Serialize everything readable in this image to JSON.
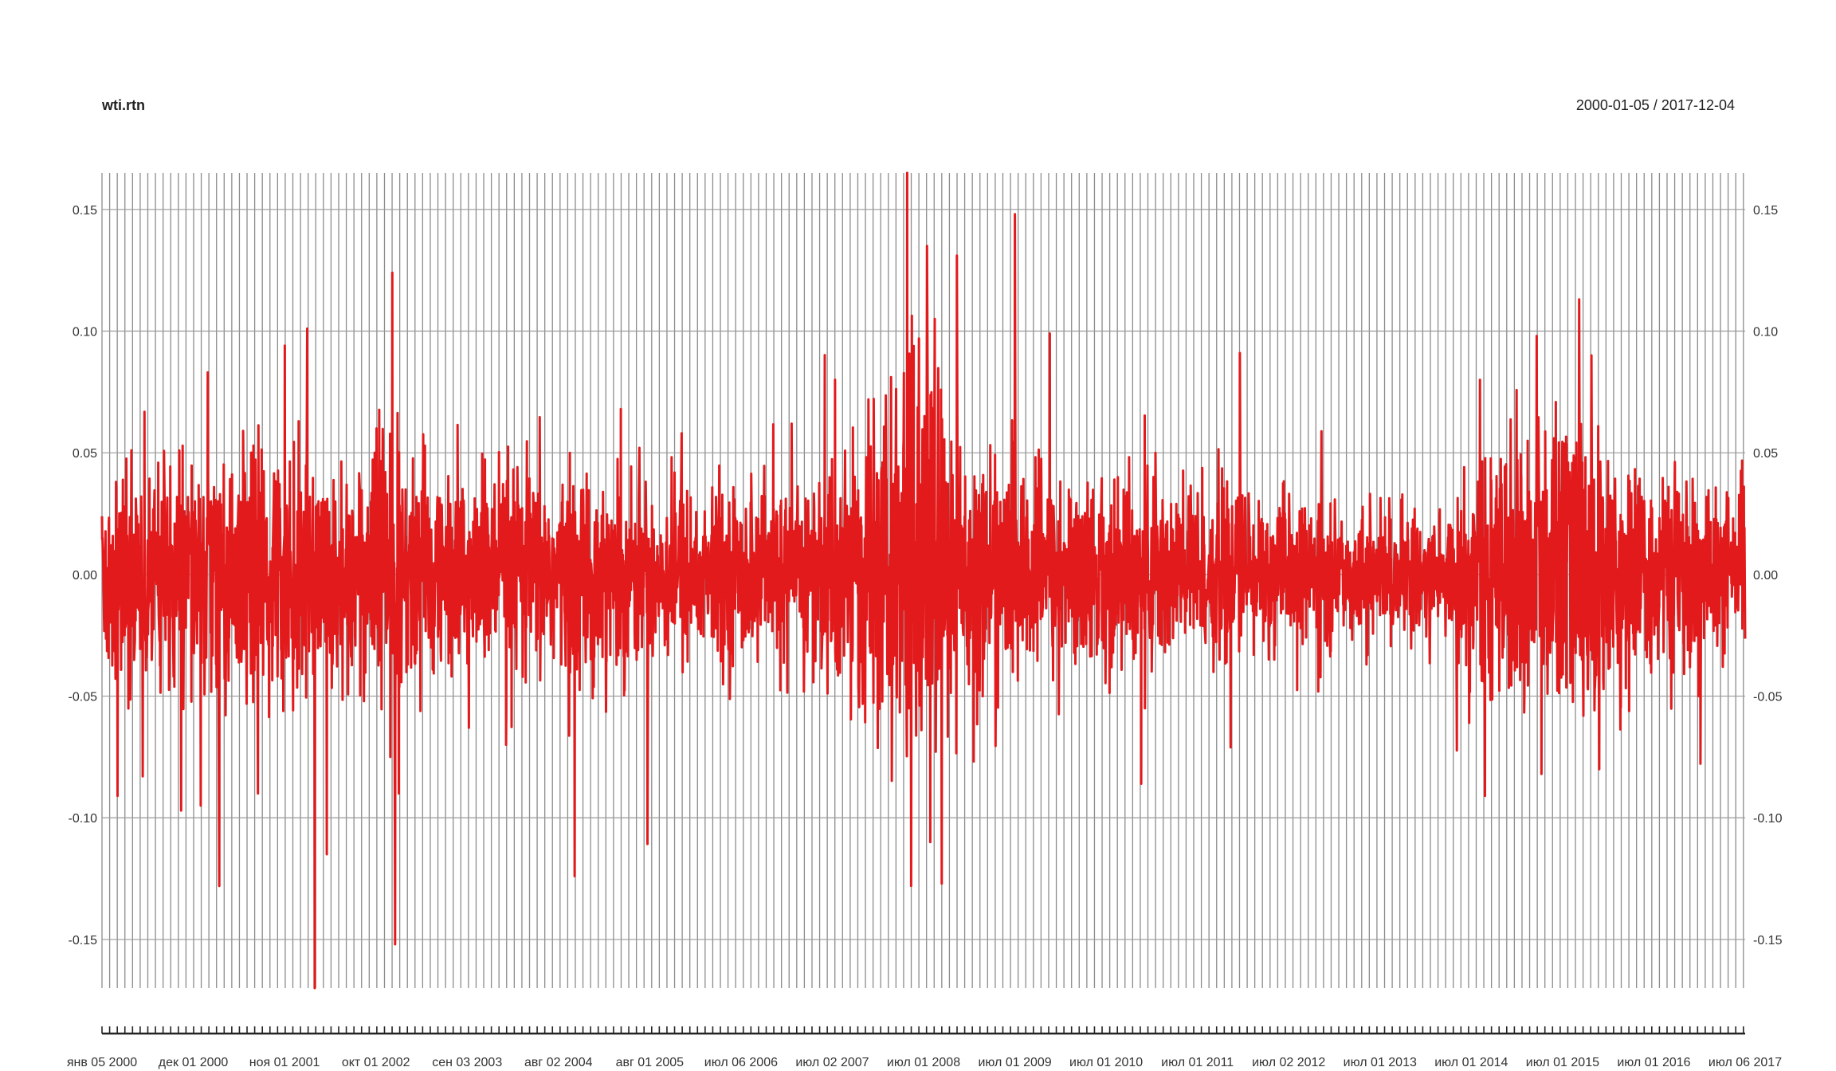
{
  "chart_data": {
    "type": "line",
    "title": "wti.rtn",
    "date_range": "2000-01-05 / 2017-12-04",
    "ylim": [
      -0.17,
      0.165
    ],
    "y_ticks": [
      0.15,
      0.1,
      0.05,
      0.0,
      -0.05,
      -0.1,
      -0.15
    ],
    "y_tick_labels": [
      "0.15",
      "0.10",
      "0.05",
      "0.00",
      "-0.05",
      "-0.10",
      "-0.15"
    ],
    "x_start": "2000-01-05",
    "x_end": "2017-12-04",
    "x_tick_labels": [
      "янв 05 2000",
      "дек 01 2000",
      "ноя 01 2001",
      "окт 01 2002",
      "сен 03 2003",
      "авг 02 2004",
      "авг 01 2005",
      "июл 06 2006",
      "июл 02 2007",
      "июл 01 2008",
      "июл 01 2009",
      "июл 01 2010",
      "июл 01 2011",
      "июл 02 2012",
      "июл 01 2013",
      "июл 01 2014",
      "июл 01 2015",
      "июл 01 2016",
      "июл 06 2017"
    ],
    "grid": true,
    "series": [
      {
        "color": "#e31a1c",
        "sigma_profile": [
          [
            "2000-01-05",
            0.022
          ],
          [
            "2000-12-01",
            0.023
          ],
          [
            "2001-11-01",
            0.025
          ],
          [
            "2002-10-01",
            0.021
          ],
          [
            "2003-02-01",
            0.03
          ],
          [
            "2003-09-03",
            0.02
          ],
          [
            "2004-08-02",
            0.021
          ],
          [
            "2005-08-01",
            0.019
          ],
          [
            "2006-07-06",
            0.017
          ],
          [
            "2007-07-02",
            0.017
          ],
          [
            "2008-07-01",
            0.03
          ],
          [
            "2008-12-01",
            0.045
          ],
          [
            "2009-07-01",
            0.025
          ],
          [
            "2010-07-01",
            0.018
          ],
          [
            "2011-07-01",
            0.02
          ],
          [
            "2012-07-02",
            0.016
          ],
          [
            "2013-07-01",
            0.012
          ],
          [
            "2014-07-01",
            0.012
          ],
          [
            "2015-07-01",
            0.028
          ],
          [
            "2016-02-01",
            0.034
          ],
          [
            "2016-07-01",
            0.022
          ],
          [
            "2017-12-04",
            0.015
          ]
        ],
        "extreme_points": [
          [
            "2000-03-07",
            -0.091
          ],
          [
            "2000-05-01",
            0.051
          ],
          [
            "2000-06-15",
            -0.083
          ],
          [
            "2000-11-15",
            -0.097
          ],
          [
            "2001-02-01",
            -0.095
          ],
          [
            "2001-03-01",
            0.083
          ],
          [
            "2001-04-15",
            -0.128
          ],
          [
            "2001-09-17",
            -0.09
          ],
          [
            "2002-01-02",
            0.094
          ],
          [
            "2002-04-01",
            0.101
          ],
          [
            "2002-05-01",
            -0.17
          ],
          [
            "2002-06-18",
            -0.115
          ],
          [
            "2003-01-02",
            0.06
          ],
          [
            "2003-02-26",
            -0.075
          ],
          [
            "2003-03-06",
            0.124
          ],
          [
            "2003-03-17",
            -0.152
          ],
          [
            "2003-04-01",
            -0.09
          ],
          [
            "2004-01-05",
            -0.063
          ],
          [
            "2004-06-01",
            -0.07
          ],
          [
            "2005-03-01",
            -0.124
          ],
          [
            "2005-09-01",
            0.068
          ],
          [
            "2006-05-01",
            0.058
          ],
          [
            "2008-01-02",
            0.08
          ],
          [
            "2008-10-15",
            0.165
          ],
          [
            "2008-11-01",
            -0.128
          ],
          [
            "2008-12-01",
            0.097
          ],
          [
            "2009-01-02",
            0.135
          ],
          [
            "2009-01-15",
            -0.11
          ],
          [
            "2009-02-01",
            0.105
          ],
          [
            "2009-03-01",
            -0.127
          ],
          [
            "2009-05-01",
            0.131
          ],
          [
            "2010-05-06",
            0.099
          ],
          [
            "2011-05-05",
            -0.086
          ],
          [
            "2011-07-01",
            0.05
          ],
          [
            "2012-06-01",
            0.091
          ],
          [
            "2014-12-01",
            -0.061
          ],
          [
            "2015-01-13",
            0.08
          ],
          [
            "2015-02-01",
            -0.091
          ],
          [
            "2015-08-27",
            0.098
          ],
          [
            "2015-09-15",
            -0.082
          ],
          [
            "2016-02-12",
            0.113
          ],
          [
            "2016-04-01",
            0.09
          ],
          [
            "2016-05-01",
            -0.08
          ],
          [
            "2017-06-01",
            -0.05
          ]
        ]
      }
    ]
  }
}
